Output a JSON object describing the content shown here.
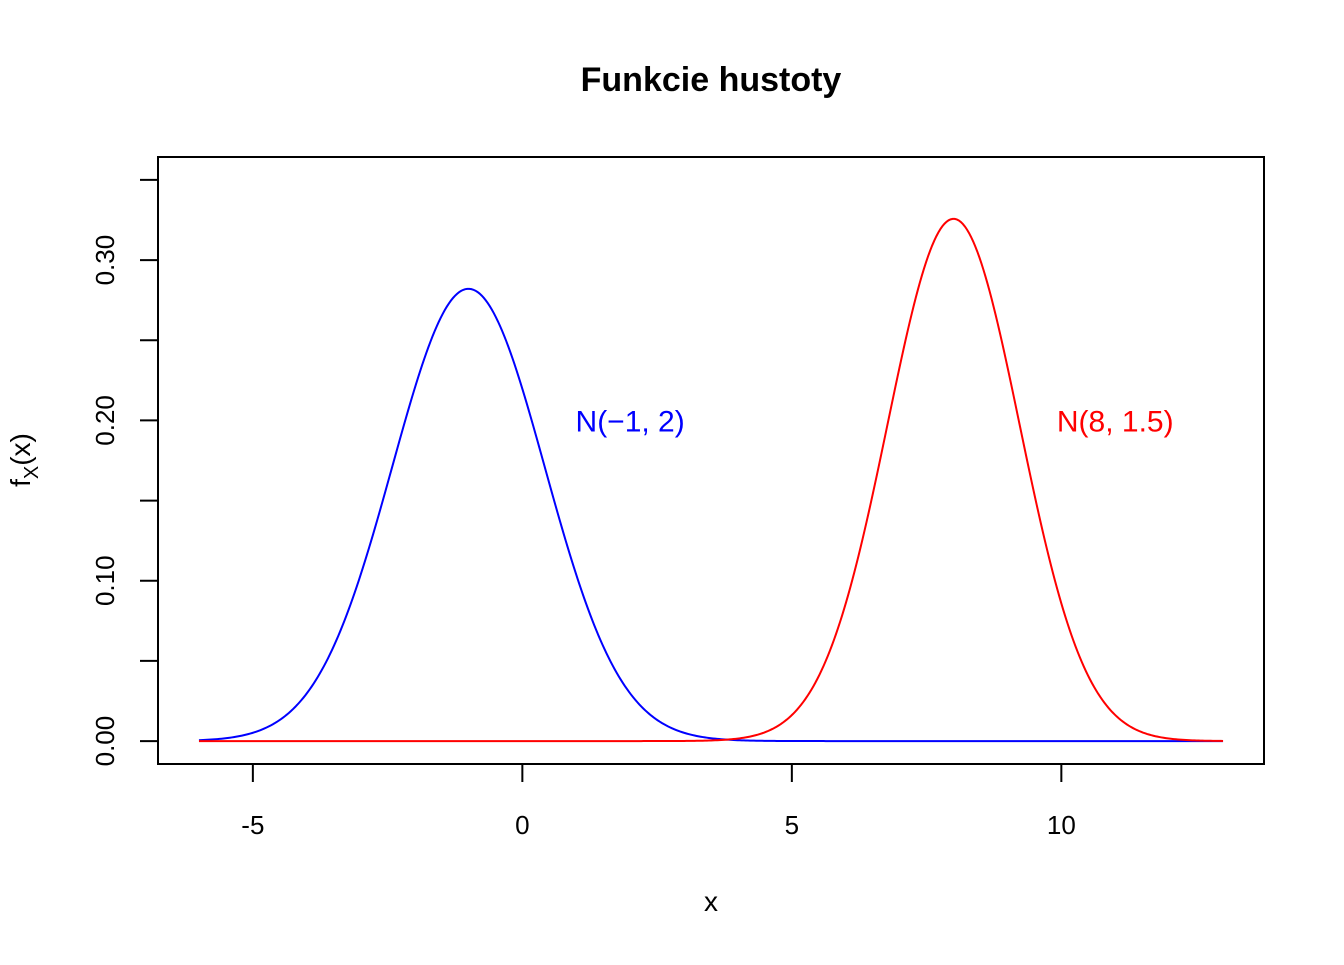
{
  "chart_data": {
    "type": "line",
    "title": "Funkcie hustoty",
    "xlabel": "x",
    "ylabel": "f_X(x)",
    "ylabel_parts": {
      "base": "f",
      "sub": "X",
      "tail": "(x)"
    },
    "xlim": [
      -6.76,
      13.76
    ],
    "ylim": [
      -0.0143,
      0.3643
    ],
    "x_ticks": [
      -5,
      0,
      5,
      10
    ],
    "x_tick_labels": [
      "-5",
      "0",
      "5",
      "10"
    ],
    "y_ticks": [
      0.0,
      0.05,
      0.1,
      0.15,
      0.2,
      0.25,
      0.3,
      0.35
    ],
    "y_tick_labels": [
      "0.00",
      "",
      "0.10",
      "",
      "0.20",
      "",
      "0.30",
      ""
    ],
    "grid": false,
    "series": [
      {
        "name": "N(−1, 2)",
        "distribution": "normal",
        "mean": -1,
        "variance": 2,
        "x_range": [
          -6,
          13
        ],
        "color": "#0000ff",
        "label_text": "N(−1, 2)",
        "label_at": [
          2,
          0.2
        ]
      },
      {
        "name": "N(8, 1.5)",
        "distribution": "normal",
        "mean": 8,
        "variance": 1.5,
        "x_range": [
          -6,
          13
        ],
        "color": "#ff0000",
        "label_text": "N(8, 1.5)",
        "label_at": [
          11,
          0.2
        ]
      }
    ]
  }
}
